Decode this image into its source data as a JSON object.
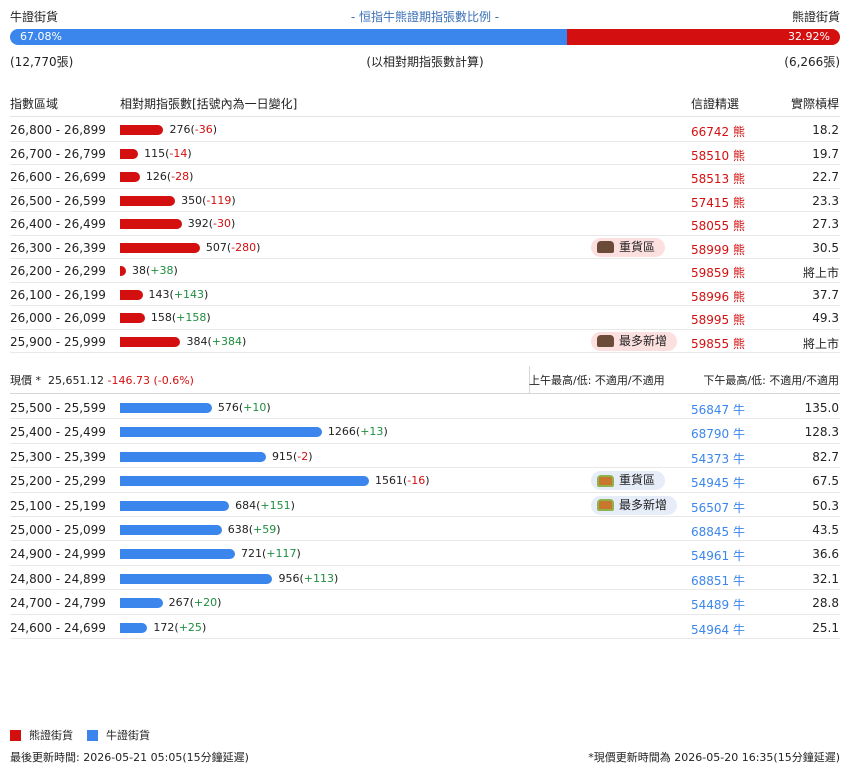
{
  "header": {
    "left_label": "牛證街貨",
    "title": "- 恒指牛熊證期指張數比例 -",
    "right_label": "熊證街貨"
  },
  "ratio": {
    "bull_pct": "67.08%",
    "bear_pct": "32.92%",
    "bull_fraction": 0.6708
  },
  "counts": {
    "bull": "(12,770張)",
    "note": "(以相對期指張數計算)",
    "bear": "(6,266張)"
  },
  "columns": {
    "range": "指數區域",
    "contracts": "相對期指張數[括號內為一日變化]",
    "code": "信證精選",
    "leverage": "實際槓桿"
  },
  "bear_rows": [
    {
      "range": "26,800 - 26,899",
      "value": "276",
      "change": "-36",
      "code": "66742",
      "type": "熊",
      "leverage": "18.2",
      "tag": ""
    },
    {
      "range": "26,700 - 26,799",
      "value": "115",
      "change": "-14",
      "code": "58510",
      "type": "熊",
      "leverage": "19.7",
      "tag": ""
    },
    {
      "range": "26,600 - 26,699",
      "value": "126",
      "change": "-28",
      "code": "58513",
      "type": "熊",
      "leverage": "22.7",
      "tag": ""
    },
    {
      "range": "26,500 - 26,599",
      "value": "350",
      "change": "-119",
      "code": "57415",
      "type": "熊",
      "leverage": "23.3",
      "tag": ""
    },
    {
      "range": "26,400 - 26,499",
      "value": "392",
      "change": "-30",
      "code": "58055",
      "type": "熊",
      "leverage": "27.3",
      "tag": ""
    },
    {
      "range": "26,300 - 26,399",
      "value": "507",
      "change": "-280",
      "code": "58999",
      "type": "熊",
      "leverage": "30.5",
      "tag": "重貨區"
    },
    {
      "range": "26,200 - 26,299",
      "value": "38",
      "change": "+38",
      "code": "59859",
      "type": "熊",
      "leverage": "將上市",
      "tag": ""
    },
    {
      "range": "26,100 - 26,199",
      "value": "143",
      "change": "+143",
      "code": "58996",
      "type": "熊",
      "leverage": "37.7",
      "tag": ""
    },
    {
      "range": "26,000 - 26,099",
      "value": "158",
      "change": "+158",
      "code": "58995",
      "type": "熊",
      "leverage": "49.3",
      "tag": ""
    },
    {
      "range": "25,900 - 25,999",
      "value": "384",
      "change": "+384",
      "code": "59855",
      "type": "熊",
      "leverage": "將上市",
      "tag": "最多新增"
    }
  ],
  "spot": {
    "label": "現價 *",
    "price": "25,651.12",
    "change": "-146.73 (-0.6%)",
    "am": "上午最高/低: 不適用/不適用",
    "pm": "下午最高/低: 不適用/不適用"
  },
  "bull_rows": [
    {
      "range": "25,500 - 25,599",
      "value": "576",
      "change": "+10",
      "code": "56847",
      "type": "牛",
      "leverage": "135.0",
      "tag": ""
    },
    {
      "range": "25,400 - 25,499",
      "value": "1266",
      "change": "+13",
      "code": "68790",
      "type": "牛",
      "leverage": "128.3",
      "tag": ""
    },
    {
      "range": "25,300 - 25,399",
      "value": "915",
      "change": "-2",
      "code": "54373",
      "type": "牛",
      "leverage": "82.7",
      "tag": ""
    },
    {
      "range": "25,200 - 25,299",
      "value": "1561",
      "change": "-16",
      "code": "54945",
      "type": "牛",
      "leverage": "67.5",
      "tag": "重貨區"
    },
    {
      "range": "25,100 - 25,199",
      "value": "684",
      "change": "+151",
      "code": "56507",
      "type": "牛",
      "leverage": "50.3",
      "tag": "最多新增"
    },
    {
      "range": "25,000 - 25,099",
      "value": "638",
      "change": "+59",
      "code": "68845",
      "type": "牛",
      "leverage": "43.5",
      "tag": ""
    },
    {
      "range": "24,900 - 24,999",
      "value": "721",
      "change": "+117",
      "code": "54961",
      "type": "牛",
      "leverage": "36.6",
      "tag": ""
    },
    {
      "range": "24,800 - 24,899",
      "value": "956",
      "change": "+113",
      "code": "68851",
      "type": "牛",
      "leverage": "32.1",
      "tag": ""
    },
    {
      "range": "24,700 - 24,799",
      "value": "267",
      "change": "+20",
      "code": "54489",
      "type": "牛",
      "leverage": "28.8",
      "tag": ""
    },
    {
      "range": "24,600 - 24,699",
      "value": "172",
      "change": "+25",
      "code": "54964",
      "type": "牛",
      "leverage": "25.1",
      "tag": ""
    }
  ],
  "legend": {
    "bear": "熊證街貨",
    "bull": "牛證街貨"
  },
  "colors": {
    "bear": "#d40f0f",
    "bull": "#3b86ec",
    "positive": "#1e8e3e"
  },
  "footer": {
    "last_update": "最後更新時間: 2026-05-21 05:05(15分鐘延遲)",
    "spot_update": "*現價更新時間為 2026-05-20 16:35(15分鐘延遲)"
  }
}
